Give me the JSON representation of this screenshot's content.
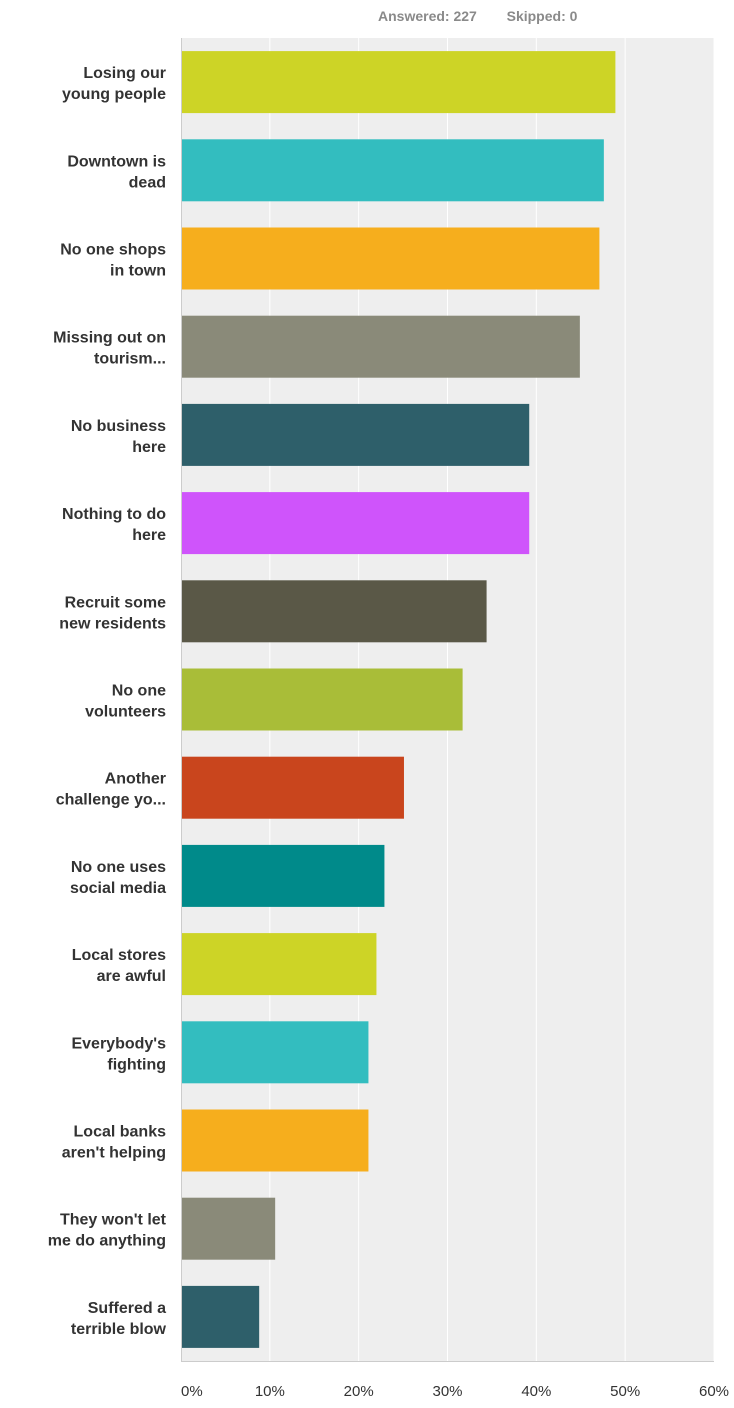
{
  "header": {
    "answered_label": "Answered:",
    "answered_value": "227",
    "skipped_label": "Skipped:",
    "skipped_value": "0"
  },
  "chart_data": {
    "type": "bar",
    "orientation": "horizontal",
    "categories": [
      [
        "Losing our",
        "young people"
      ],
      [
        "Downtown is",
        "dead"
      ],
      [
        "No one shops",
        "in town"
      ],
      [
        "Missing out on",
        "tourism..."
      ],
      [
        "No business",
        "here"
      ],
      [
        "Nothing to do",
        "here"
      ],
      [
        "Recruit some",
        "new residents"
      ],
      [
        "No one",
        "volunteers"
      ],
      [
        "Another",
        "challenge yo..."
      ],
      [
        "No one uses",
        "social media"
      ],
      [
        "Local stores",
        "are awful"
      ],
      [
        "Everybody's",
        "fighting"
      ],
      [
        "Local banks",
        "aren't helping"
      ],
      [
        "They won't let",
        "me do anything"
      ],
      [
        "Suffered a",
        "terrible blow"
      ]
    ],
    "values": [
      48.9,
      47.6,
      47.1,
      44.9,
      39.2,
      39.2,
      34.4,
      31.7,
      25.1,
      22.9,
      22.0,
      21.1,
      21.1,
      10.6,
      8.8
    ],
    "colors": [
      "#cdd426",
      "#33bdbf",
      "#f6ae1d",
      "#8a8a79",
      "#2e5f6a",
      "#cf54fb",
      "#5a5847",
      "#a9bd38",
      "#c9451d",
      "#008a8a",
      "#cdd426",
      "#33bdbf",
      "#f6ae1d",
      "#8a8a79",
      "#2e5f6a"
    ],
    "xlim": [
      0,
      60
    ],
    "xticks": [
      "0%",
      "10%",
      "20%",
      "30%",
      "40%",
      "50%",
      "60%"
    ],
    "grid": true,
    "title": "",
    "xlabel": "",
    "ylabel": ""
  }
}
